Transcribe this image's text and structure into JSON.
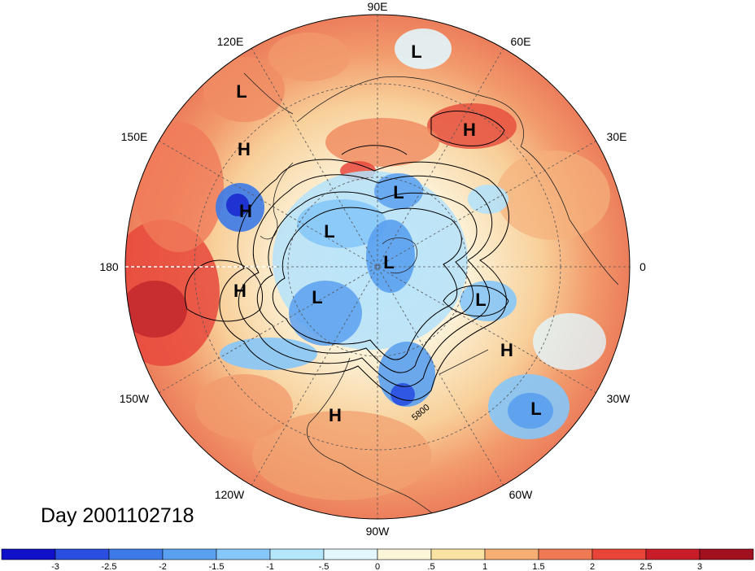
{
  "title": "Day 2001102718",
  "longitude_labels": [
    "90E",
    "60E",
    "30E",
    "0",
    "30W",
    "60W",
    "90W",
    "120W",
    "150W",
    "180",
    "150E",
    "120E"
  ],
  "pressure_centers": [
    {
      "type": "L",
      "lon": 60
    },
    {
      "type": "L",
      "lon": 120
    },
    {
      "type": "H",
      "lon": 150
    },
    {
      "type": "H",
      "lon": 40
    },
    {
      "type": "L",
      "lon": 90
    },
    {
      "type": "H",
      "lon": 170
    },
    {
      "type": "L",
      "lon": 150
    },
    {
      "type": "L",
      "lon": 0
    },
    {
      "type": "H",
      "lon": -170
    },
    {
      "type": "L",
      "lon": -150
    },
    {
      "type": "L",
      "lon": -20
    },
    {
      "type": "H",
      "lon": -40
    },
    {
      "type": "L",
      "lon": -50
    },
    {
      "type": "H",
      "lon": -100
    }
  ],
  "contour_label": "5800",
  "colorbar": {
    "ticks": [
      "-3",
      "-2.5",
      "-2",
      "-1.5",
      "-1",
      "-.5",
      "0",
      ".5",
      "1",
      "1.5",
      "2",
      "2.5",
      "3"
    ],
    "colors": [
      "#1010c8",
      "#2a4fe0",
      "#3c7ae8",
      "#5aa0f0",
      "#86c6f8",
      "#b4e6fc",
      "#e2f6fc",
      "#fcf6d8",
      "#fae2a2",
      "#f6ae72",
      "#f07a54",
      "#e84438",
      "#c81c28",
      "#a0101e"
    ]
  }
}
